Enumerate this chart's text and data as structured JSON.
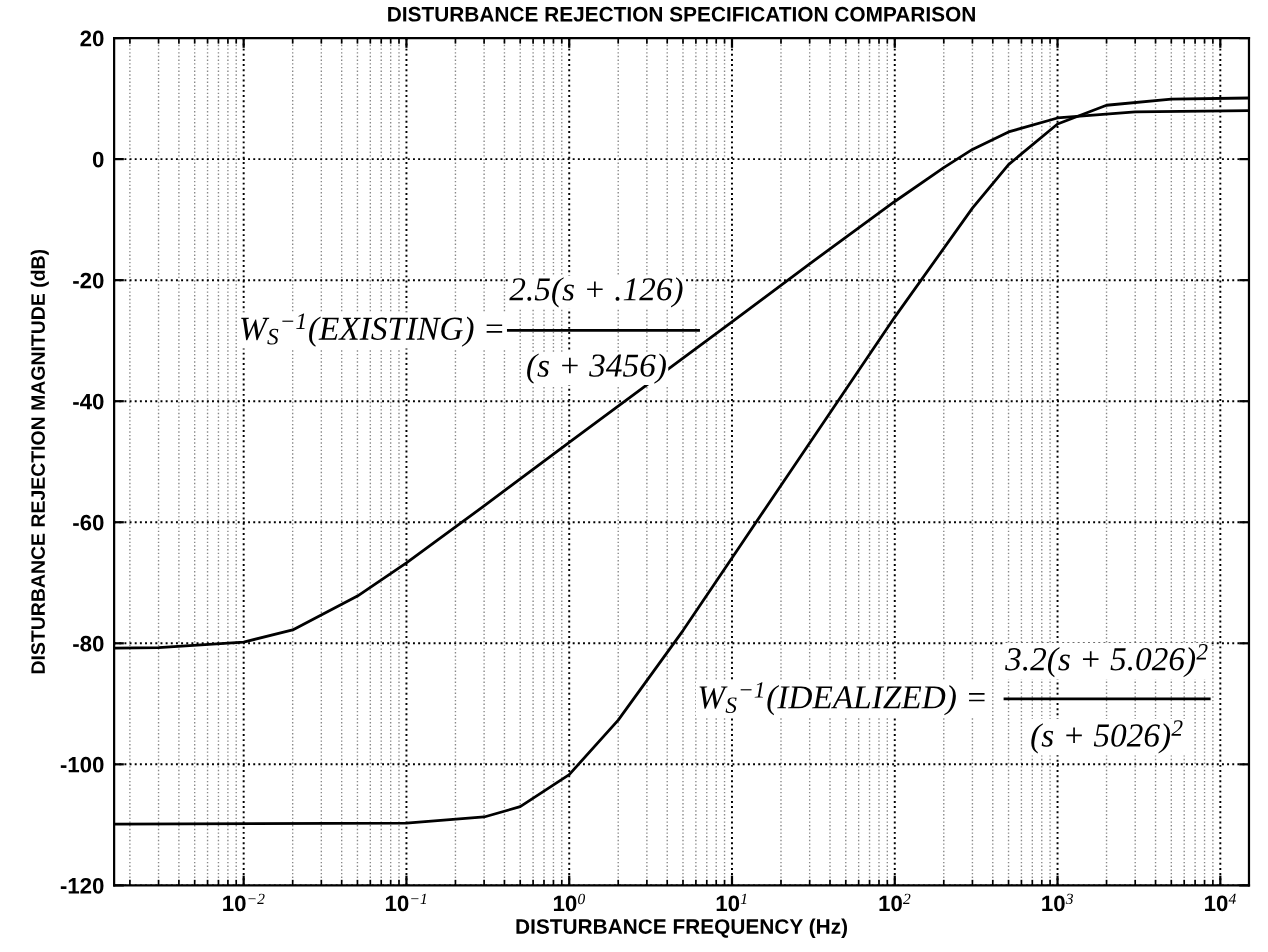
{
  "chart_data": {
    "type": "line",
    "title": "DISTURBANCE REJECTION SPECIFICATION COMPARISON",
    "xlabel": "DISTURBANCE FREQUENCY (Hz)",
    "ylabel": "DISTURBANCE REJECTION MAGNITUDE (dB)",
    "log": "x",
    "grid": true,
    "legend": false,
    "marker": "none",
    "line_style": "solid",
    "xlim": [
      0.0016,
      15000
    ],
    "ylim": [
      -120,
      20
    ],
    "xticks": [
      {
        "value": 0.01,
        "label": "10$^{−2}$"
      },
      {
        "value": 0.1,
        "label": "10$^{−1}$"
      },
      {
        "value": 1,
        "label": "10$^{0}$"
      },
      {
        "value": 10,
        "label": "10$^{1}$"
      },
      {
        "value": 100,
        "label": "10$^{2}$"
      },
      {
        "value": 1000,
        "label": "10$^{3}$"
      },
      {
        "value": 10000,
        "label": "10$^{4}$"
      }
    ],
    "yticks": [
      -120,
      -100,
      -80,
      -60,
      -40,
      -20,
      0,
      20
    ],
    "series": [
      {
        "color": "#000000",
        "x": [
          0.0016,
          0.003,
          0.01,
          0.02,
          0.05,
          0.1,
          0.3,
          1,
          3,
          10,
          30,
          100,
          200,
          300,
          500,
          1000,
          3000,
          15000
        ],
        "values": [
          -80.8,
          -80.7,
          -79.8,
          -77.8,
          -72.2,
          -66.7,
          -57.3,
          -46.8,
          -37.3,
          -26.9,
          -17.3,
          -7.0,
          -1.4,
          1.6,
          4.5,
          6.8,
          7.8,
          8.0
        ]
      },
      {
        "color": "#000000",
        "x": [
          0.0016,
          0.1,
          0.3,
          0.5,
          1,
          2,
          5,
          10,
          30,
          100,
          300,
          500,
          1000,
          2000,
          5000,
          15000
        ],
        "values": [
          -109.9,
          -109.7,
          -108.7,
          -107.0,
          -101.7,
          -92.7,
          -77.9,
          -65.9,
          -46.9,
          -26.1,
          -8.1,
          -0.9,
          5.8,
          8.9,
          9.9,
          10.1
        ]
      }
    ],
    "annotations": [
      "W$_{S}$$^{−1}$(EXISTING) =",
      "2.5(s + .126)",
      "(s + 3456)",
      "W$_{S}$$^{−1}$(IDEALIZED) =",
      "3.2(s + 5.026)$^{2}$",
      "(s + 5026)$^{2}$"
    ]
  }
}
